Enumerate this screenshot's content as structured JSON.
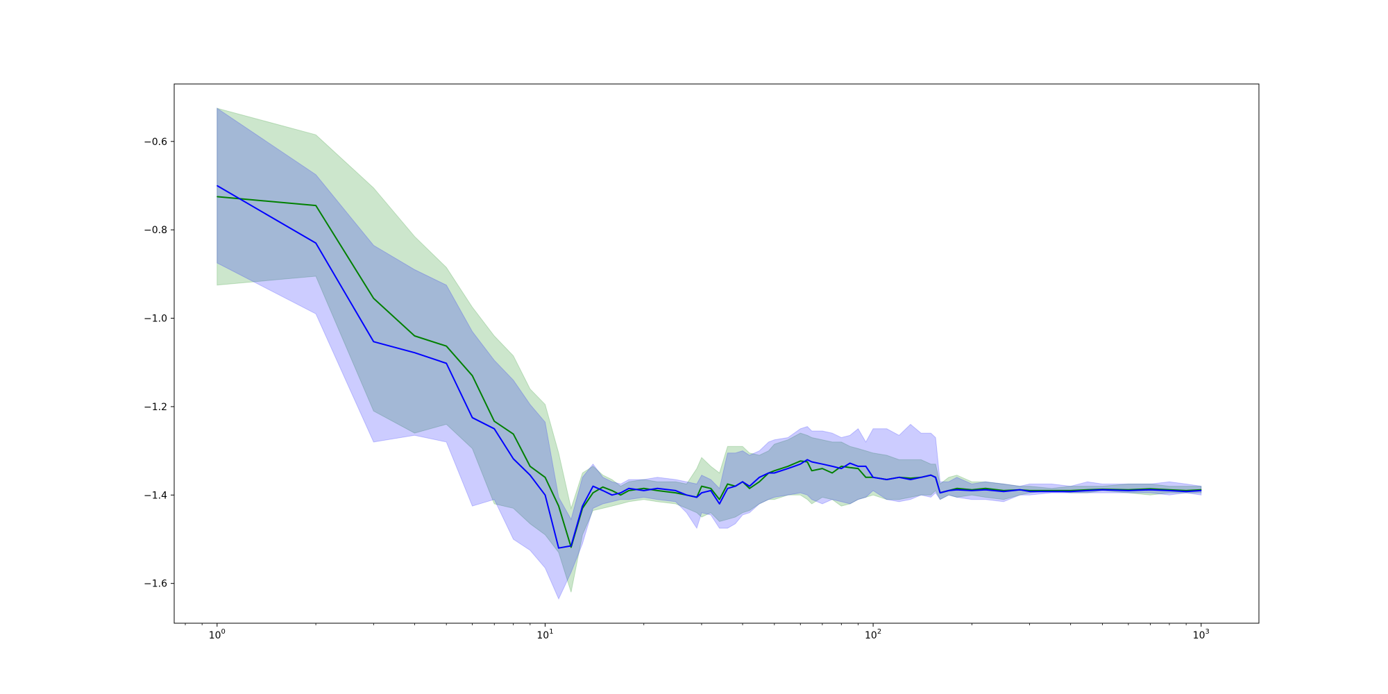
{
  "chart_data": {
    "type": "line",
    "title": "",
    "xlabel": "",
    "ylabel": "",
    "xscale": "log",
    "xlim": [
      0.74,
      1500
    ],
    "ylim": [
      -1.69,
      -0.47
    ],
    "grid": false,
    "legend": "none",
    "x_ticks": [
      {
        "value": 1,
        "base": "10",
        "exp": "0"
      },
      {
        "value": 10,
        "base": "10",
        "exp": "1"
      },
      {
        "value": 100,
        "base": "10",
        "exp": "2"
      },
      {
        "value": 1000,
        "base": "10",
        "exp": "3"
      }
    ],
    "y_ticks": [
      {
        "value": -0.6,
        "label": "−0.6"
      },
      {
        "value": -0.8,
        "label": "−0.8"
      },
      {
        "value": -1.0,
        "label": "−1.0"
      },
      {
        "value": -1.2,
        "label": "−1.2"
      },
      {
        "value": -1.4,
        "label": "−1.4"
      },
      {
        "value": -1.6,
        "label": "−1.6"
      }
    ],
    "series": [
      {
        "color": "#008000",
        "band_color": "#008000",
        "band_opacity": 0.2,
        "x": [
          1,
          2,
          3,
          4,
          5,
          6,
          7,
          8,
          9,
          10,
          11,
          12,
          13,
          14,
          15,
          16,
          17,
          18,
          20,
          22,
          25,
          27,
          29,
          30,
          32,
          34,
          36,
          38,
          40,
          42,
          45,
          48,
          50,
          55,
          60,
          63,
          65,
          70,
          75,
          80,
          85,
          90,
          95,
          100,
          110,
          120,
          130,
          140,
          150,
          155,
          160,
          170,
          180,
          200,
          220,
          250,
          280,
          300,
          350,
          400,
          450,
          500,
          600,
          700,
          800,
          900,
          1000
        ],
        "y": [
          -0.725,
          -0.745,
          -0.955,
          -1.04,
          -1.063,
          -1.13,
          -1.233,
          -1.262,
          -1.335,
          -1.36,
          -1.425,
          -1.518,
          -1.43,
          -1.395,
          -1.382,
          -1.39,
          -1.4,
          -1.39,
          -1.385,
          -1.39,
          -1.395,
          -1.4,
          -1.405,
          -1.38,
          -1.385,
          -1.41,
          -1.375,
          -1.38,
          -1.37,
          -1.385,
          -1.37,
          -1.35,
          -1.345,
          -1.335,
          -1.323,
          -1.325,
          -1.345,
          -1.34,
          -1.35,
          -1.335,
          -1.338,
          -1.34,
          -1.36,
          -1.36,
          -1.365,
          -1.36,
          -1.362,
          -1.36,
          -1.355,
          -1.36,
          -1.395,
          -1.39,
          -1.385,
          -1.388,
          -1.385,
          -1.39,
          -1.388,
          -1.39,
          -1.39,
          -1.39,
          -1.388,
          -1.387,
          -1.388,
          -1.386,
          -1.388,
          -1.39,
          -1.388
        ],
        "lower": [
          -0.925,
          -0.905,
          -1.21,
          -1.26,
          -1.24,
          -1.295,
          -1.42,
          -1.43,
          -1.465,
          -1.49,
          -1.53,
          -1.62,
          -1.49,
          -1.435,
          -1.43,
          -1.425,
          -1.42,
          -1.415,
          -1.41,
          -1.415,
          -1.42,
          -1.43,
          -1.44,
          -1.45,
          -1.44,
          -1.46,
          -1.455,
          -1.45,
          -1.44,
          -1.435,
          -1.42,
          -1.41,
          -1.41,
          -1.4,
          -1.4,
          -1.41,
          -1.42,
          -1.405,
          -1.41,
          -1.425,
          -1.42,
          -1.41,
          -1.405,
          -1.4,
          -1.41,
          -1.41,
          -1.405,
          -1.4,
          -1.4,
          -1.39,
          -1.41,
          -1.4,
          -1.405,
          -1.4,
          -1.405,
          -1.41,
          -1.4,
          -1.395,
          -1.39,
          -1.395,
          -1.395,
          -1.39,
          -1.395,
          -1.4,
          -1.395,
          -1.395,
          -1.395
        ],
        "upper": [
          -0.525,
          -0.585,
          -0.705,
          -0.815,
          -0.885,
          -0.975,
          -1.04,
          -1.085,
          -1.16,
          -1.195,
          -1.305,
          -1.43,
          -1.35,
          -1.335,
          -1.355,
          -1.365,
          -1.38,
          -1.37,
          -1.365,
          -1.37,
          -1.37,
          -1.375,
          -1.34,
          -1.315,
          -1.335,
          -1.35,
          -1.29,
          -1.29,
          -1.29,
          -1.305,
          -1.31,
          -1.3,
          -1.285,
          -1.275,
          -1.26,
          -1.265,
          -1.27,
          -1.275,
          -1.28,
          -1.28,
          -1.29,
          -1.295,
          -1.3,
          -1.305,
          -1.31,
          -1.32,
          -1.32,
          -1.32,
          -1.33,
          -1.33,
          -1.375,
          -1.36,
          -1.355,
          -1.37,
          -1.37,
          -1.375,
          -1.38,
          -1.38,
          -1.385,
          -1.38,
          -1.38,
          -1.38,
          -1.375,
          -1.375,
          -1.38,
          -1.38,
          -1.38
        ]
      },
      {
        "color": "#0000ff",
        "band_color": "#0000ff",
        "band_opacity": 0.2,
        "x": [
          1,
          2,
          3,
          4,
          5,
          6,
          7,
          8,
          9,
          10,
          11,
          12,
          13,
          14,
          15,
          16,
          17,
          18,
          20,
          22,
          25,
          27,
          29,
          30,
          32,
          34,
          36,
          38,
          40,
          42,
          45,
          48,
          50,
          55,
          60,
          63,
          65,
          70,
          75,
          80,
          85,
          90,
          95,
          100,
          110,
          120,
          130,
          140,
          150,
          155,
          160,
          170,
          180,
          200,
          220,
          250,
          280,
          300,
          350,
          400,
          450,
          500,
          600,
          700,
          800,
          900,
          1000
        ],
        "y": [
          -0.7,
          -0.83,
          -1.053,
          -1.078,
          -1.102,
          -1.225,
          -1.25,
          -1.318,
          -1.355,
          -1.4,
          -1.52,
          -1.515,
          -1.425,
          -1.38,
          -1.39,
          -1.4,
          -1.395,
          -1.385,
          -1.39,
          -1.385,
          -1.39,
          -1.4,
          -1.405,
          -1.395,
          -1.39,
          -1.42,
          -1.385,
          -1.38,
          -1.37,
          -1.38,
          -1.36,
          -1.35,
          -1.35,
          -1.34,
          -1.33,
          -1.32,
          -1.325,
          -1.33,
          -1.335,
          -1.34,
          -1.328,
          -1.335,
          -1.335,
          -1.36,
          -1.365,
          -1.36,
          -1.365,
          -1.36,
          -1.355,
          -1.36,
          -1.395,
          -1.39,
          -1.388,
          -1.39,
          -1.388,
          -1.392,
          -1.388,
          -1.392,
          -1.392,
          -1.392,
          -1.39,
          -1.388,
          -1.39,
          -1.388,
          -1.39,
          -1.392,
          -1.39
        ],
        "lower": [
          -0.875,
          -0.99,
          -1.28,
          -1.265,
          -1.28,
          -1.425,
          -1.41,
          -1.5,
          -1.525,
          -1.565,
          -1.635,
          -1.575,
          -1.51,
          -1.43,
          -1.42,
          -1.415,
          -1.41,
          -1.41,
          -1.405,
          -1.41,
          -1.415,
          -1.44,
          -1.475,
          -1.44,
          -1.445,
          -1.475,
          -1.475,
          -1.465,
          -1.445,
          -1.44,
          -1.42,
          -1.41,
          -1.405,
          -1.4,
          -1.395,
          -1.4,
          -1.41,
          -1.42,
          -1.41,
          -1.415,
          -1.42,
          -1.41,
          -1.405,
          -1.39,
          -1.41,
          -1.415,
          -1.41,
          -1.4,
          -1.405,
          -1.395,
          -1.41,
          -1.4,
          -1.405,
          -1.41,
          -1.41,
          -1.415,
          -1.4,
          -1.4,
          -1.395,
          -1.395,
          -1.395,
          -1.395,
          -1.395,
          -1.395,
          -1.4,
          -1.395,
          -1.4
        ],
        "upper": [
          -0.525,
          -0.675,
          -0.835,
          -0.89,
          -0.925,
          -1.03,
          -1.095,
          -1.14,
          -1.195,
          -1.235,
          -1.405,
          -1.455,
          -1.36,
          -1.33,
          -1.36,
          -1.37,
          -1.375,
          -1.365,
          -1.365,
          -1.36,
          -1.365,
          -1.37,
          -1.375,
          -1.355,
          -1.365,
          -1.385,
          -1.305,
          -1.305,
          -1.3,
          -1.31,
          -1.3,
          -1.28,
          -1.275,
          -1.27,
          -1.25,
          -1.245,
          -1.255,
          -1.255,
          -1.26,
          -1.27,
          -1.265,
          -1.25,
          -1.28,
          -1.25,
          -1.25,
          -1.265,
          -1.24,
          -1.26,
          -1.26,
          -1.27,
          -1.37,
          -1.37,
          -1.36,
          -1.375,
          -1.37,
          -1.375,
          -1.38,
          -1.375,
          -1.375,
          -1.38,
          -1.37,
          -1.375,
          -1.375,
          -1.375,
          -1.37,
          -1.375,
          -1.38
        ]
      }
    ]
  }
}
